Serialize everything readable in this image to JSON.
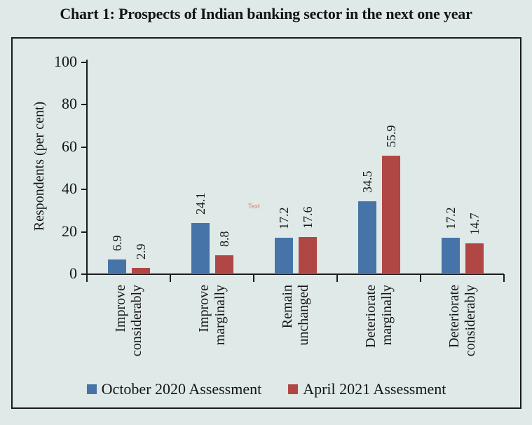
{
  "page": {
    "background": "#dfe9e7",
    "border_color": "#1b1b1b"
  },
  "chart_data": {
    "type": "bar",
    "title": "Chart 1: Prospects of Indian banking sector in the next one year",
    "ylabel": "Respondents (per cent)",
    "xlabel": "",
    "ylim": [
      0,
      100
    ],
    "yticks": [
      0,
      20,
      40,
      60,
      80,
      100
    ],
    "grid": false,
    "legend_position": "bottom",
    "value_labels": "rotated-90-above-bars",
    "category_labels": "rotated-90-below-axis",
    "categories": [
      [
        "Improve",
        "considerably"
      ],
      [
        "Improve",
        "marginally"
      ],
      [
        "Remain",
        "unchanged"
      ],
      [
        "Deteriorate",
        "marginally"
      ],
      [
        "Deteriorate",
        "considerably"
      ]
    ],
    "series": [
      {
        "name": "October 2020 Assessment",
        "color": "#4673a8",
        "values": [
          6.9,
          24.1,
          17.2,
          34.5,
          17.2
        ]
      },
      {
        "name": "April 2021 Assessment",
        "color": "#b04744",
        "values": [
          2.9,
          8.8,
          17.6,
          55.9,
          14.7
        ]
      }
    ]
  },
  "artifact": {
    "text": "Text",
    "color": "#dd7b70"
  }
}
